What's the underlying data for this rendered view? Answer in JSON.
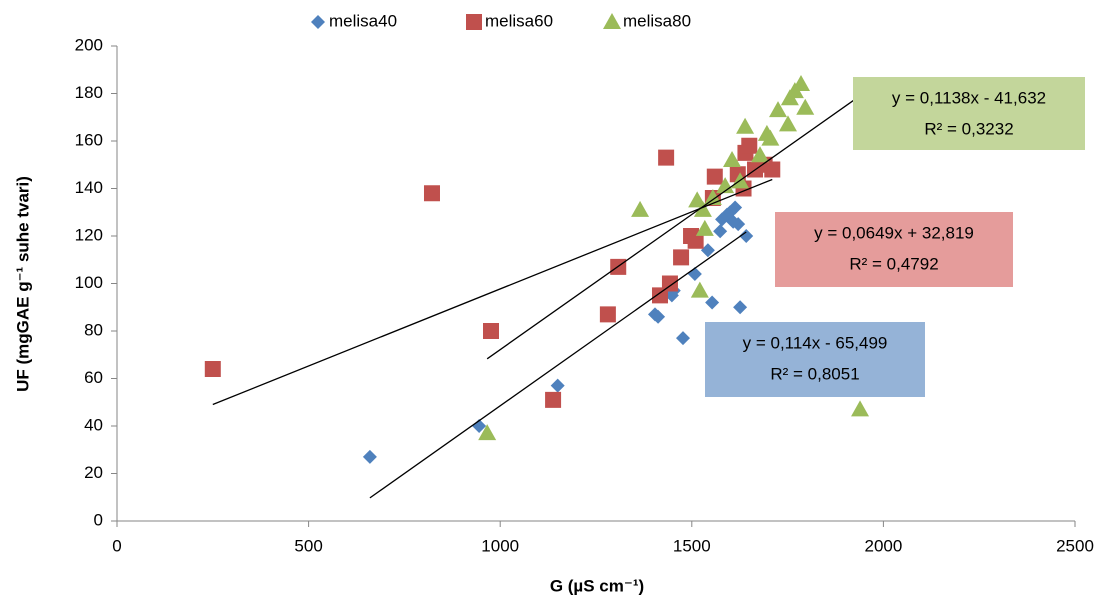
{
  "chart_data": {
    "type": "scatter",
    "x_label": "G (µS cm⁻¹)",
    "y_label": "UF (mgGAE g⁻¹ suhe tvari)",
    "xlim": [
      0,
      2500
    ],
    "xticks": [
      0,
      500,
      1000,
      1500,
      2000,
      2500
    ],
    "ylim": [
      0,
      200
    ],
    "yticks": [
      0,
      20,
      40,
      60,
      80,
      100,
      120,
      140,
      160,
      180,
      200
    ],
    "grid": false,
    "legend": "top",
    "series": [
      {
        "name": "melisa40",
        "color": "#4f81bd",
        "marker": "diamond",
        "x": [
          660,
          945,
          1150,
          1404,
          1412,
          1448,
          1453,
          1477,
          1508,
          1542,
          1553,
          1574,
          1579,
          1592,
          1600,
          1613,
          1626,
          1621,
          1642,
          1608
        ],
        "values": [
          27,
          40,
          57,
          87,
          86,
          95,
          97,
          77,
          104,
          114,
          92,
          122,
          127,
          129,
          130,
          132,
          90,
          125,
          120,
          126
        ],
        "trendline": {
          "label": "y = 0,114x - 65,499",
          "r2_label": "R² = 0,8051",
          "slope": 0.114,
          "intercept": -65.499,
          "box_color": "#95b3d7"
        }
      },
      {
        "name": "melisa60",
        "color": "#c0504d",
        "marker": "square",
        "x": [
          250,
          822,
          976,
          1138,
          1281,
          1308,
          1417,
          1443,
          1472,
          1498,
          1510,
          1433,
          1560,
          1555,
          1620,
          1640,
          1650,
          1665,
          1690,
          1710,
          1635
        ],
        "values": [
          64,
          138,
          80,
          51,
          87,
          107,
          95,
          100,
          111,
          120,
          118,
          153,
          145,
          136,
          146,
          155,
          158,
          148,
          150,
          148,
          140
        ],
        "trendline": {
          "label": "y = 0,0649x + 32,819",
          "r2_label": "R² = 0,4792",
          "slope": 0.0649,
          "intercept": 32.819,
          "box_color": "#e59c9b"
        }
      },
      {
        "name": "melisa80",
        "color": "#9bbb59",
        "marker": "triangle",
        "x": [
          966,
          1365,
          1514,
          1529,
          1534,
          1521,
          1555,
          1587,
          1605,
          1626,
          1639,
          1678,
          1696,
          1705,
          1725,
          1751,
          1756,
          1769,
          1785,
          1796,
          1939
        ],
        "values": [
          37,
          131,
          135,
          131,
          123,
          97,
          136,
          141,
          152,
          143,
          166,
          154,
          163,
          161,
          173,
          167,
          178,
          181,
          184,
          174,
          47
        ],
        "trendline": {
          "label": "y = 0,1138x - 41,632",
          "r2_label": "R² = 0,3232",
          "slope": 0.1138,
          "intercept": -41.632,
          "box_color": "#c3d69b"
        }
      }
    ]
  }
}
